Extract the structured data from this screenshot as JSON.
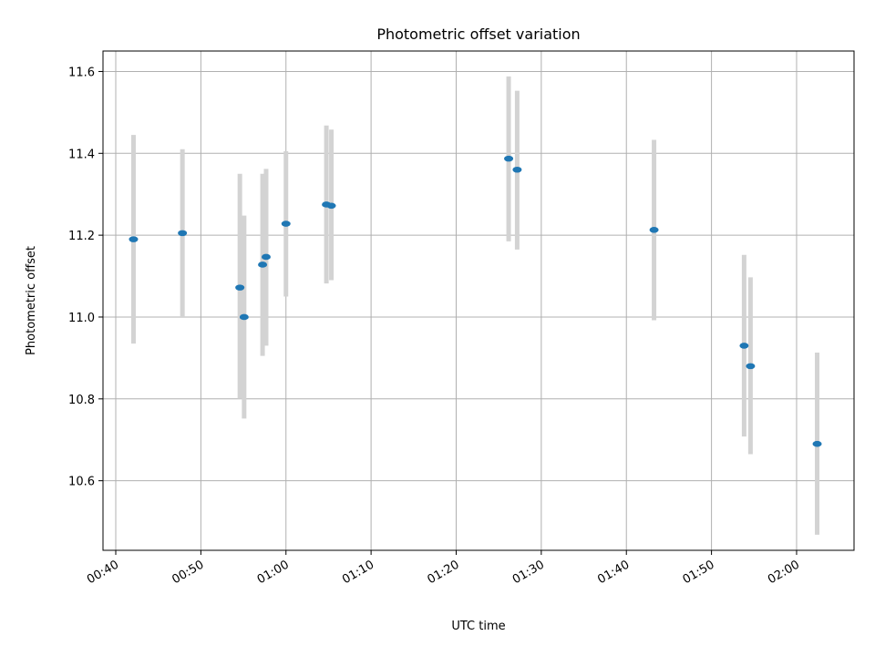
{
  "chart_data": {
    "type": "scatter",
    "title": "Photometric offset variation",
    "xlabel": "UTC time",
    "ylabel": "Photometric offset",
    "x_axis_kind": "time",
    "xlim": [
      "00:38:30",
      "02:06:45"
    ],
    "ylim": [
      10.43,
      11.65
    ],
    "xticks": [
      "00:40",
      "00:50",
      "01:00",
      "01:10",
      "01:20",
      "01:30",
      "01:40",
      "01:50",
      "02:00"
    ],
    "yticks": [
      10.6,
      10.8,
      11.0,
      11.2,
      11.4,
      11.6
    ],
    "grid": true,
    "legend": "none",
    "colors": {
      "point": "#1f77b4",
      "errorbar": "#d3d3d3",
      "grid": "#b0b0b0"
    },
    "points": [
      {
        "time": "00:42:05",
        "y": 11.19,
        "yerr_low": 10.935,
        "yerr_high": 11.445
      },
      {
        "time": "00:47:50",
        "y": 11.205,
        "yerr_low": 11.0,
        "yerr_high": 11.41
      },
      {
        "time": "00:54:35",
        "y": 11.072,
        "yerr_low": 10.8,
        "yerr_high": 11.35
      },
      {
        "time": "00:55:05",
        "y": 11.0,
        "yerr_low": 10.752,
        "yerr_high": 11.248
      },
      {
        "time": "00:57:15",
        "y": 11.128,
        "yerr_low": 10.905,
        "yerr_high": 11.35
      },
      {
        "time": "00:57:40",
        "y": 11.147,
        "yerr_low": 10.93,
        "yerr_high": 11.362
      },
      {
        "time": "01:00:00",
        "y": 11.228,
        "yerr_low": 11.05,
        "yerr_high": 11.405
      },
      {
        "time": "01:04:45",
        "y": 11.275,
        "yerr_low": 11.082,
        "yerr_high": 11.468
      },
      {
        "time": "01:05:20",
        "y": 11.272,
        "yerr_low": 11.09,
        "yerr_high": 11.458
      },
      {
        "time": "01:26:10",
        "y": 11.387,
        "yerr_low": 11.185,
        "yerr_high": 11.588
      },
      {
        "time": "01:27:10",
        "y": 11.36,
        "yerr_low": 11.165,
        "yerr_high": 11.553
      },
      {
        "time": "01:43:15",
        "y": 11.213,
        "yerr_low": 10.992,
        "yerr_high": 11.433
      },
      {
        "time": "01:53:50",
        "y": 10.93,
        "yerr_low": 10.708,
        "yerr_high": 11.152
      },
      {
        "time": "01:54:35",
        "y": 10.88,
        "yerr_low": 10.665,
        "yerr_high": 11.097
      },
      {
        "time": "02:02:25",
        "y": 10.69,
        "yerr_low": 10.468,
        "yerr_high": 10.913
      }
    ]
  }
}
